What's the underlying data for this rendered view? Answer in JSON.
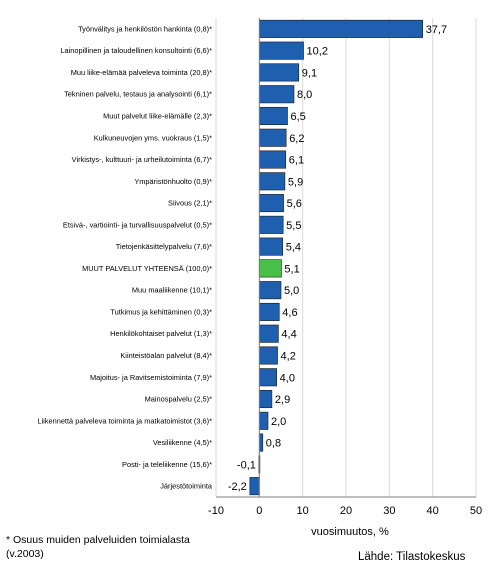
{
  "chart_data": {
    "type": "bar",
    "orientation": "horizontal",
    "categories": [
      "Työnvälitys ja henkilöstön hankinta (0,8)*",
      "Lainopillinen ja taloudellinen konsultointi (6,6)*",
      "Muu liike-elämää palveleva toiminta (20,8)*",
      "Tekninen palvelu, testaus ja analysointi (6,1)*",
      "Muut palvelut liike-elämälle (2,3)*",
      "Kulkuneuvojen yms. vuokraus (1,5)*",
      "Virkistys-, kulttuuri- ja urheilutoiminta (6,7)*",
      "Ympäristönhuolto (0,9)*",
      "Siivous (2,1)*",
      "Etsivä-, vartiointi- ja turvallisuuspalvelut (0,5)*",
      "Tietojenkäsittelypalvelu (7,6)*",
      "MUUT PALVELUT YHTEENSÄ (100,0)*",
      "Muu maaliikenne (10,1)*",
      "Tutkimus ja kehittäminen (0,3)*",
      "Henkilökohtaiset palvelut (1,3)*",
      "Kiinteistöalan palvelut (8,4)*",
      "Majoitus- ja Ravitsemistoiminta (7,9)*",
      "Mainospalvelu (2,5)*",
      "Liikennettä palveleva toiminta ja matkatoimistot (3,6)*",
      "Vesiliikenne (4,5)*",
      "Posti- ja teleliikenne (15,6)*",
      "Järjestötoiminta"
    ],
    "values": [
      37.7,
      10.2,
      9.1,
      8.0,
      6.5,
      6.2,
      6.1,
      5.9,
      5.6,
      5.5,
      5.4,
      5.1,
      5.0,
      4.6,
      4.4,
      4.2,
      4.0,
      2.9,
      2.0,
      0.8,
      -0.1,
      -2.2
    ],
    "value_labels": [
      "37,7",
      "10,2",
      "9,1",
      "8,0",
      "6,5",
      "6,2",
      "6,1",
      "5,9",
      "5,6",
      "5,5",
      "5,4",
      "5,1",
      "5,0",
      "4,6",
      "4,4",
      "4,2",
      "4,0",
      "2,9",
      "2,0",
      "0,8",
      "-0,1",
      "-2,2"
    ],
    "highlight_index": 11,
    "xlabel": "vuosimuutos, %",
    "xlim": [
      -10,
      50
    ],
    "xticks": [
      -10,
      0,
      10,
      20,
      30,
      40,
      50
    ],
    "grid": true,
    "colors": {
      "bar": "#1f5fb0",
      "highlight": "#49c04a",
      "grid": "#d9d9d9",
      "axis": "#7f7f7f"
    }
  },
  "footnote": "* Osuus muiden palveluiden toimialasta (v.2003)",
  "source": "Lähde: Tilastokeskus"
}
